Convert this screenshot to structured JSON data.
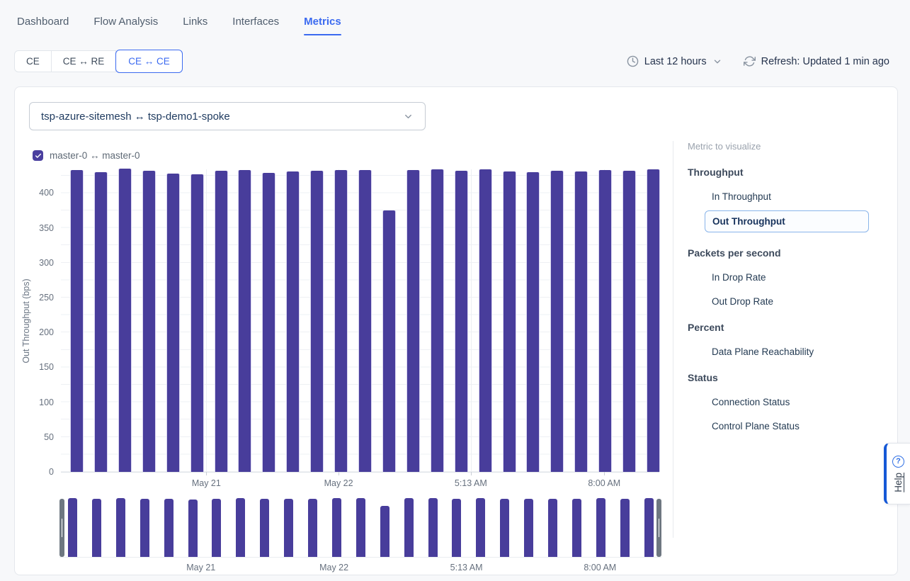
{
  "colors": {
    "accent_blue": "#3b6af0",
    "bar": "#483d9b",
    "checkbox": "#4a3f9f",
    "selected_item_border": "#8ab5ea",
    "help_blue": "#1558d6"
  },
  "nav": {
    "items": [
      {
        "label": "Dashboard",
        "active": false
      },
      {
        "label": "Flow Analysis",
        "active": false
      },
      {
        "label": "Links",
        "active": false
      },
      {
        "label": "Interfaces",
        "active": false
      },
      {
        "label": "Metrics",
        "active": true
      }
    ]
  },
  "toolbar": {
    "view_tabs": [
      {
        "label": "CE",
        "active": false
      },
      {
        "label": "CE ↔ RE",
        "active": false
      },
      {
        "label": "CE ↔ CE",
        "active": true
      }
    ],
    "time_range": {
      "label": "Last 12 hours",
      "icon": "clock-icon",
      "chevron": "chevron-down-icon"
    },
    "refresh": {
      "label": "Refresh: Updated 1 min ago",
      "icon": "refresh-icon"
    }
  },
  "link_selector": {
    "value": "tsp-azure-sitemesh ↔ tsp-demo1-spoke",
    "chevron": "chevron-down-icon"
  },
  "legend": {
    "label": "master-0 ↔ master-0",
    "checked": true,
    "icon": "checkbox-checked-icon"
  },
  "chart_data": {
    "type": "bar",
    "title": "",
    "xlabel": "",
    "ylabel": "Out Throughput (bps)",
    "ylim": [
      0,
      435
    ],
    "y_ticks": [
      0,
      50,
      100,
      150,
      200,
      250,
      300,
      350,
      400
    ],
    "grid": true,
    "bar_color": "#483d9b",
    "x_ticks": [
      {
        "label": "May 21",
        "pos": 0.243
      },
      {
        "label": "May 22",
        "pos": 0.464
      },
      {
        "label": "5:13 AM",
        "pos": 0.685
      },
      {
        "label": "8:00 AM",
        "pos": 0.908
      }
    ],
    "series": [
      {
        "name": "master-0 ↔ master-0",
        "values": [
          433,
          430,
          437,
          432,
          428,
          427,
          432,
          433,
          429,
          431,
          432,
          433,
          433,
          375,
          433,
          434,
          432,
          434,
          431,
          430,
          432,
          431,
          433,
          432,
          434
        ]
      }
    ],
    "brush": {
      "x_ticks": [
        {
          "label": "May 21",
          "pos": 0.235
        },
        {
          "label": "May 22",
          "pos": 0.456
        },
        {
          "label": "5:13 AM",
          "pos": 0.676
        },
        {
          "label": "8:00 AM",
          "pos": 0.898
        }
      ],
      "selected_range": [
        0,
        1
      ]
    }
  },
  "metric_panel": {
    "title": "Metric to visualize",
    "groups": [
      {
        "label": "Throughput",
        "items": [
          {
            "label": "In Throughput",
            "selected": false
          },
          {
            "label": "Out Throughput",
            "selected": true
          }
        ]
      },
      {
        "label": "Packets per second",
        "items": [
          {
            "label": "In Drop Rate",
            "selected": false
          },
          {
            "label": "Out Drop Rate",
            "selected": false
          }
        ]
      },
      {
        "label": "Percent",
        "items": [
          {
            "label": "Data Plane Reachability",
            "selected": false
          }
        ]
      },
      {
        "label": "Status",
        "items": [
          {
            "label": "Connection Status",
            "selected": false
          },
          {
            "label": "Control Plane Status",
            "selected": false
          }
        ]
      }
    ]
  },
  "help": {
    "label": "Help",
    "icon": "question-circle-icon"
  }
}
